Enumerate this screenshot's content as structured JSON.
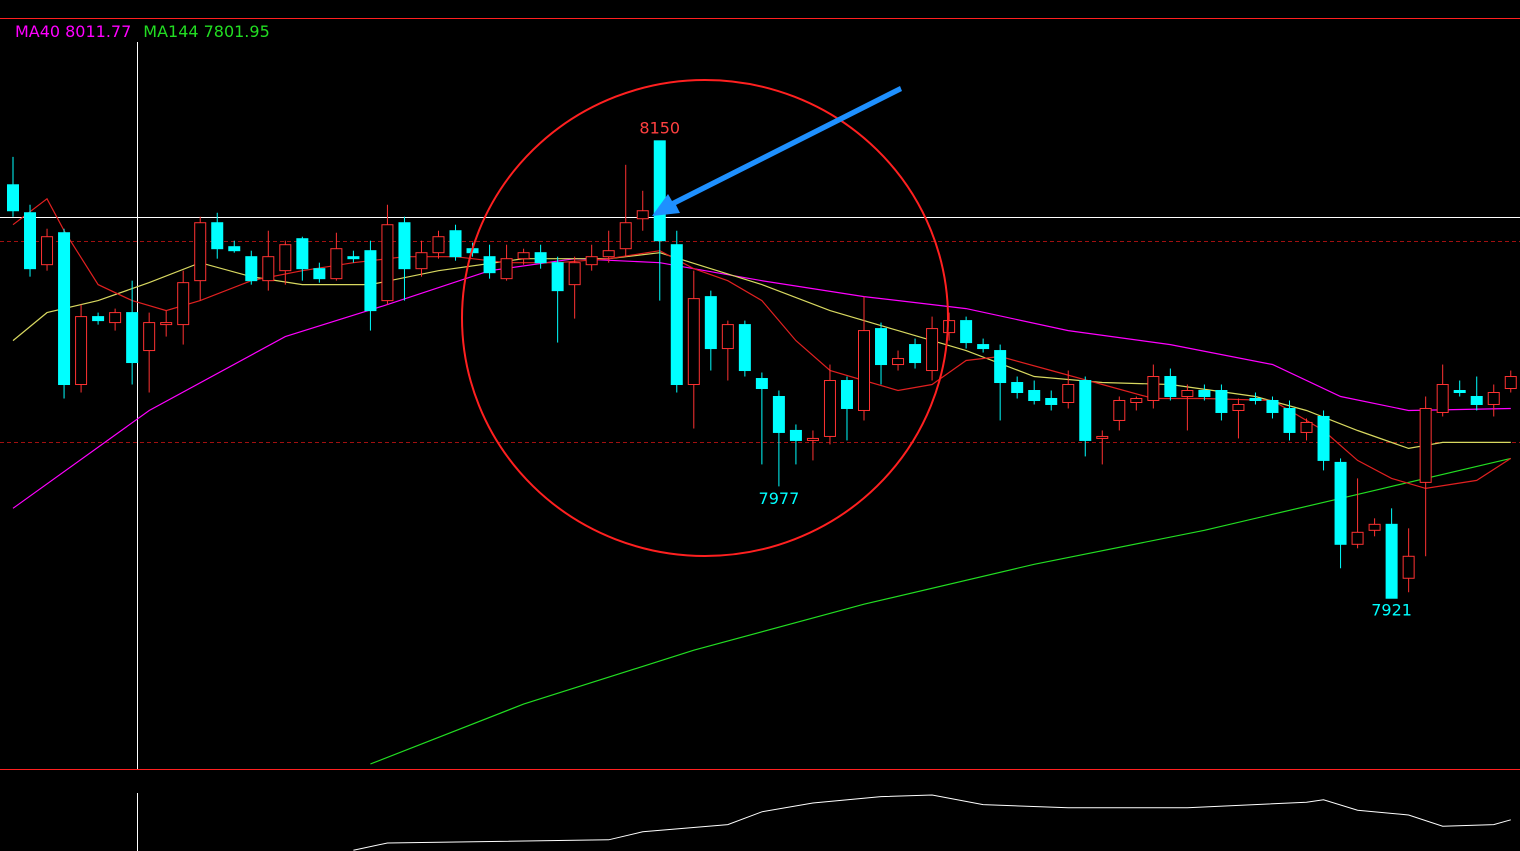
{
  "chart_data": {
    "type": "candlestick",
    "ylim": [
      7835.5,
      8211
    ],
    "up_color": "#ff3232",
    "down_color": "#00ffff",
    "candles": {
      "open": [
        8128,
        8114,
        8088,
        8104,
        8028,
        8062,
        8059,
        8064,
        8045,
        8058,
        8058,
        8080,
        8109,
        8097,
        8092,
        8080,
        8085,
        8101,
        8086,
        8081,
        8092,
        8095,
        8070,
        8109,
        8086,
        8094,
        8105,
        8096,
        8092,
        8081,
        8091,
        8094,
        8089,
        8078,
        8088,
        8092,
        8096,
        8111,
        8150,
        8098,
        8028,
        8072,
        8046,
        8058,
        8031,
        8022,
        8005,
        8000,
        8002,
        8030,
        8015,
        8056,
        8038,
        8048,
        8035,
        8054,
        8060,
        8048,
        8045,
        8029,
        8025,
        8021,
        8019,
        8030,
        8001,
        8010,
        8019,
        8020,
        8032,
        8022,
        8025,
        8025,
        8015,
        8021,
        8020,
        8016,
        8004,
        8012,
        7989,
        7948,
        7955,
        7958,
        7931,
        7979,
        8014,
        8025,
        8022,
        8018,
        8026
      ],
      "high": [
        8142,
        8118,
        8106,
        8106,
        8068,
        8064,
        8066,
        8080,
        8064,
        8065,
        8085,
        8112,
        8114,
        8100,
        8095,
        8105,
        8100,
        8102,
        8089,
        8104,
        8095,
        8100,
        8118,
        8112,
        8100,
        8105,
        8108,
        8099,
        8098,
        8098,
        8096,
        8098,
        8092,
        8092,
        8098,
        8105,
        8138,
        8125,
        8150,
        8105,
        8085,
        8075,
        8060,
        8060,
        8034,
        8025,
        8008,
        8005,
        8038,
        8032,
        8072,
        8059,
        8045,
        8051,
        8062,
        8064,
        8062,
        8051,
        8048,
        8032,
        8030,
        8025,
        8035,
        8032,
        8005,
        8022,
        8022,
        8038,
        8036,
        8028,
        8028,
        8028,
        8021,
        8024,
        8022,
        8020,
        8011,
        8015,
        7991,
        7981,
        7961,
        7966,
        7956,
        8022,
        8038,
        8030,
        8032,
        8028,
        8035
      ],
      "low": [
        8112,
        8082,
        8085,
        8021,
        8024,
        8058,
        8055,
        8028,
        8024,
        8052,
        8048,
        8070,
        8091,
        8094,
        8078,
        8075,
        8078,
        8080,
        8079,
        8080,
        8089,
        8055,
        8068,
        8070,
        8082,
        8091,
        8090,
        8092,
        8081,
        8080,
        8088,
        8086,
        8049,
        8061,
        8085,
        8089,
        8092,
        8105,
        8070,
        8024,
        8006,
        8035,
        8030,
        8032,
        7988,
        7977,
        7988,
        7990,
        7998,
        8000,
        8010,
        8028,
        8035,
        8036,
        8030,
        8050,
        8046,
        8044,
        8010,
        8021,
        8018,
        8015,
        8016,
        7992,
        7988,
        8005,
        8015,
        8016,
        8020,
        8005,
        8020,
        8010,
        8001,
        8018,
        8011,
        8000,
        8000,
        7985,
        7936,
        7946,
        7952,
        7921,
        7924,
        7942,
        8012,
        8022,
        8015,
        8012,
        8024
      ],
      "close": [
        8115,
        8086,
        8102,
        8028,
        8062,
        8060,
        8064,
        8039,
        8059,
        8059,
        8079,
        8109,
        8096,
        8095,
        8080,
        8092,
        8098,
        8086,
        8081,
        8096,
        8091,
        8065,
        8108,
        8086,
        8094,
        8102,
        8092,
        8094,
        8084,
        8091,
        8094,
        8089,
        8075,
        8089,
        8092,
        8095,
        8109,
        8115,
        8100,
        8028,
        8071,
        8046,
        8058,
        8035,
        8026,
        8004,
        8000,
        8001,
        8030,
        8016,
        8055,
        8038,
        8041,
        8039,
        8056,
        8060,
        8049,
        8046,
        8029,
        8024,
        8020,
        8018,
        8028,
        8000,
        8002,
        8020,
        8021,
        8032,
        8022,
        8025,
        8022,
        8014,
        8018,
        8020,
        8014,
        8004,
        8009,
        7990,
        7948,
        7954,
        7958,
        7921,
        7942,
        8016,
        8028,
        8024,
        8018,
        8024,
        8032
      ]
    },
    "extreme_labels": [
      {
        "field": "high",
        "index": 38,
        "color": "#ff4040"
      },
      {
        "field": "low",
        "index": 45,
        "color": "#00ffff"
      },
      {
        "field": "low",
        "index": 81,
        "color": "#00ffff"
      }
    ],
    "series": [
      {
        "name": "MA40",
        "color": "#ff00ff",
        "cursor_value": 8011.77,
        "x": [
          0,
          8,
          16,
          22,
          28,
          33,
          38,
          44,
          50,
          56,
          62,
          68,
          74,
          78,
          82,
          88
        ],
        "values": [
          7966,
          8015,
          8052,
          8068,
          8085,
          8091,
          8089,
          8080,
          8072,
          8066,
          8055,
          8048,
          8038,
          8022,
          8015,
          8016
        ]
      },
      {
        "name": "MA144",
        "color": "#22dd22",
        "cursor_value": 7801.95,
        "x": [
          21,
          30,
          40,
          50,
          60,
          70,
          80,
          88
        ],
        "values": [
          7838,
          7868,
          7895,
          7918,
          7938,
          7955,
          7975,
          7991
        ]
      },
      {
        "color": "#d8d860",
        "x": [
          0,
          2,
          5,
          8,
          11,
          14,
          17,
          21,
          25,
          30,
          35,
          38,
          41,
          44,
          48,
          52,
          56,
          60,
          64,
          68,
          73,
          76,
          79,
          82,
          84,
          88
        ],
        "values": [
          8050,
          8064,
          8070,
          8079,
          8089,
          8082,
          8078,
          8078,
          8085,
          8091,
          8091,
          8094,
          8086,
          8078,
          8065,
          8055,
          8045,
          8032,
          8029,
          8028,
          8022,
          8015,
          8005,
          7996,
          7999,
          7999
        ]
      },
      {
        "color": "#e02020",
        "x": [
          0,
          2,
          3,
          5,
          7,
          9,
          11,
          14,
          17,
          20,
          23,
          26,
          29,
          32,
          35,
          38,
          40,
          42,
          44,
          46,
          48,
          50,
          52,
          54,
          56,
          58,
          61,
          64,
          67,
          70,
          74,
          77,
          79,
          81,
          83,
          86,
          88
        ],
        "values": [
          8108,
          8121,
          8105,
          8078,
          8070,
          8065,
          8070,
          8080,
          8085,
          8089,
          8092,
          8092,
          8089,
          8089,
          8091,
          8095,
          8086,
          8080,
          8070,
          8050,
          8035,
          8030,
          8025,
          8028,
          8040,
          8042,
          8035,
          8028,
          8021,
          8021,
          8020,
          8005,
          7990,
          7981,
          7976,
          7980,
          7991
        ]
      }
    ],
    "indicator": {
      "color": "#ffffff",
      "ylim": [
        0,
        100
      ],
      "x": [
        20,
        22,
        35,
        37,
        42,
        44,
        47,
        51,
        54,
        57,
        62,
        69,
        76,
        77,
        79,
        82,
        84,
        87,
        88
      ],
      "values": [
        1,
        10,
        14,
        24,
        33,
        49,
        60,
        68,
        70,
        58,
        54,
        54,
        61,
        64,
        51,
        45,
        31,
        33,
        39
      ]
    }
  }
}
